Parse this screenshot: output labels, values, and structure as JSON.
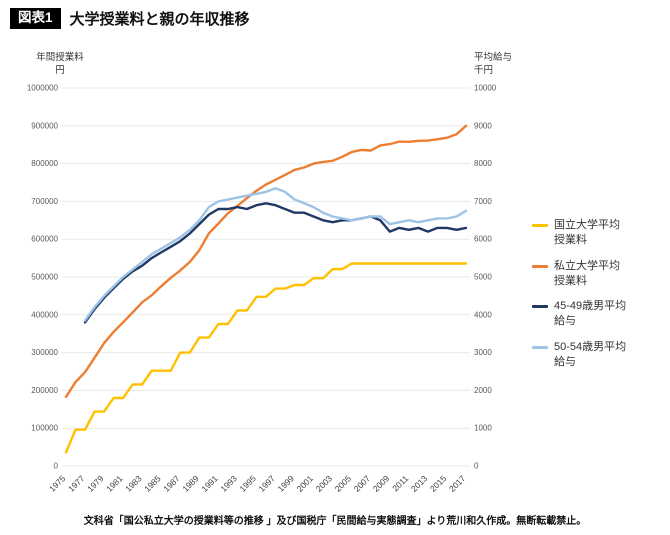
{
  "header": {
    "badge": "図表1",
    "title": "大学授業料と親の年収推移"
  },
  "axis_titles": {
    "left": "年間授業料\n円",
    "right": "平均給与\n千円"
  },
  "footer": {
    "source": "文科省「国公私立大学の授業料等の推移 」及び国税庁「民間給与実態調査」より荒川和久作成。無断転載禁止。"
  },
  "chart_data": {
    "type": "line",
    "title": "大学授業料と親の年収推移",
    "ylabel_left": "年間授業料 円",
    "ylabel_right": "平均給与 千円",
    "grid": true,
    "legend_position": "right",
    "y_left": {
      "min": 0,
      "max": 1000000,
      "step": 100000
    },
    "y_right": {
      "min": 0,
      "max": 10000,
      "step": 1000
    },
    "x": [
      1975,
      1976,
      1977,
      1978,
      1979,
      1980,
      1981,
      1982,
      1983,
      1984,
      1985,
      1986,
      1987,
      1988,
      1989,
      1990,
      1991,
      1992,
      1993,
      1994,
      1995,
      1996,
      1997,
      1998,
      1999,
      2000,
      2001,
      2002,
      2003,
      2004,
      2005,
      2006,
      2007,
      2008,
      2009,
      2010,
      2011,
      2012,
      2013,
      2014,
      2015,
      2016,
      2017
    ],
    "x_ticks": [
      1975,
      1977,
      1979,
      1981,
      1983,
      1985,
      1987,
      1989,
      1991,
      1993,
      1995,
      1997,
      1999,
      2001,
      2003,
      2005,
      2007,
      2009,
      2011,
      2013,
      2015,
      2017
    ],
    "series": [
      {
        "name": "国立大学平均授業料",
        "color": "#FFC000",
        "axis": "left",
        "values": [
          36000,
          96000,
          96000,
          144000,
          144000,
          180000,
          180000,
          216000,
          216000,
          252000,
          252000,
          252000,
          300000,
          300000,
          339600,
          339600,
          375600,
          375600,
          411600,
          411600,
          447600,
          447600,
          469200,
          469200,
          478800,
          478800,
          496800,
          496800,
          520800,
          520800,
          535800,
          535800,
          535800,
          535800,
          535800,
          535800,
          535800,
          535800,
          535800,
          535800,
          535800,
          535800,
          535800
        ]
      },
      {
        "name": "私立大学平均授業料",
        "color": "#ED7D31",
        "axis": "left",
        "values": [
          182677,
          221844,
          248066,
          286568,
          325198,
          355156,
          380253,
          406261,
          433200,
          451722,
          475325,
          497826,
          517395,
          539591,
          570584,
          615486,
          641608,
          668460,
          688046,
          708847,
          728365,
          744733,
          757158,
          770024,
          783298,
          789659,
          799973,
          804367,
          807413,
          817952,
          830583,
          836297,
          834751,
          848178,
          851621,
          858265,
          857763,
          860266,
          860772,
          864384,
          868447,
          877735,
          900093
        ]
      },
      {
        "name": "45-49歳男平均給与",
        "color": "#1F3864",
        "axis": "right",
        "values": [
          null,
          null,
          3800,
          4150,
          4450,
          4700,
          4950,
          5150,
          5300,
          5500,
          5650,
          5800,
          5950,
          6150,
          6400,
          6650,
          6800,
          6800,
          6850,
          6800,
          6900,
          6950,
          6900,
          6800,
          6700,
          6700,
          6600,
          6500,
          6450,
          6500,
          6500,
          6550,
          6600,
          6500,
          6200,
          6300,
          6250,
          6300,
          6200,
          6300,
          6300,
          6250,
          6300
        ]
      },
      {
        "name": "50-54歳男平均給与",
        "color": "#9DC3E6",
        "axis": "right",
        "values": [
          null,
          null,
          3850,
          4200,
          4500,
          4750,
          5000,
          5200,
          5400,
          5600,
          5750,
          5900,
          6050,
          6250,
          6500,
          6850,
          7000,
          7050,
          7100,
          7150,
          7200,
          7250,
          7350,
          7250,
          7050,
          6950,
          6850,
          6700,
          6600,
          6550,
          6500,
          6550,
          6600,
          6600,
          6400,
          6450,
          6500,
          6450,
          6500,
          6550,
          6550,
          6600,
          6750
        ]
      }
    ]
  }
}
